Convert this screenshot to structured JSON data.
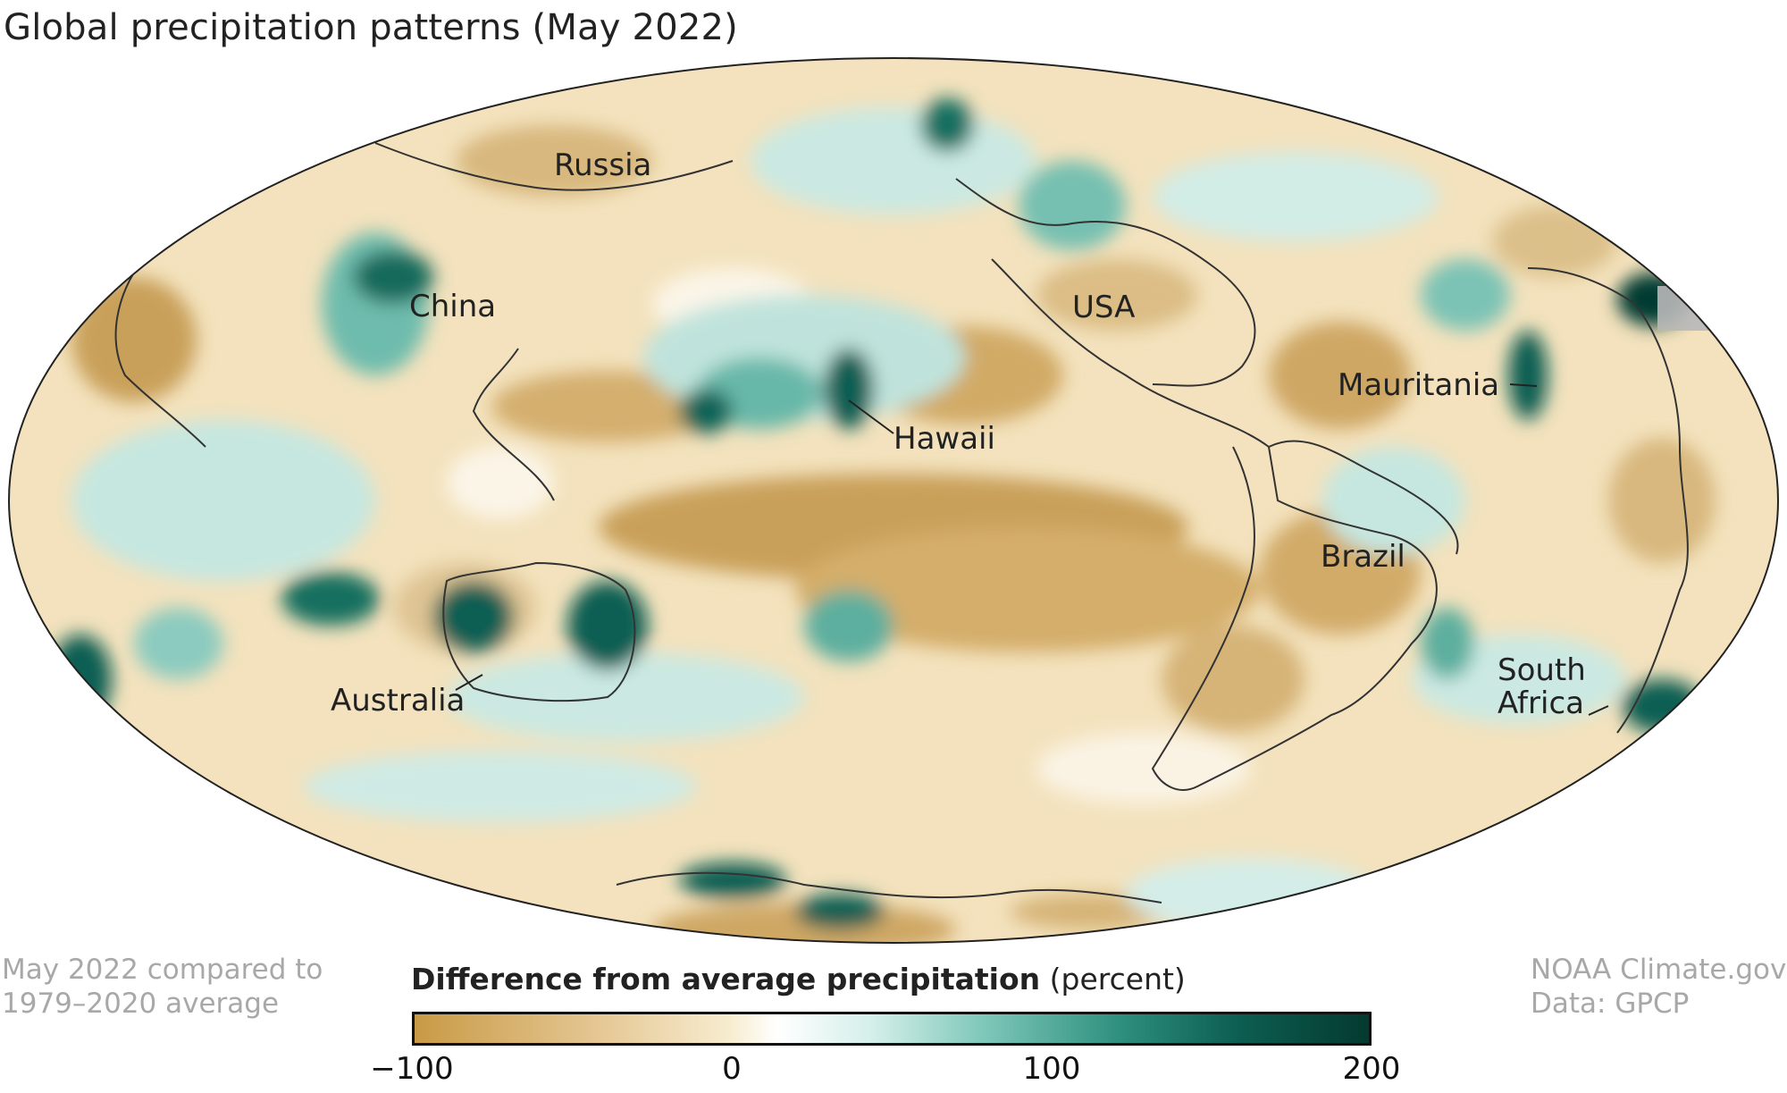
{
  "title": "Global precipitation patterns (May 2022)",
  "labels": {
    "russia": "Russia",
    "china": "China",
    "usa": "USA",
    "mauritania": "Mauritania",
    "hawaii": "Hawaii",
    "brazil": "Brazil",
    "australia": "Australia",
    "south_africa_line1": "South",
    "south_africa_line2": "Africa"
  },
  "note_left": {
    "line1": "May 2022 compared to",
    "line2": "1979–2020 average"
  },
  "note_right": {
    "line1": "NOAA Climate.gov",
    "line2": "Data: GPCP"
  },
  "legend": {
    "title_bold": "Difference from average precipitation",
    "title_unit": "(percent)",
    "ticks": [
      "−100",
      "0",
      "100",
      "200"
    ],
    "colors": {
      "dry": "#c89a45",
      "neutral": "#ffffff",
      "wet": "#043a30"
    }
  }
}
